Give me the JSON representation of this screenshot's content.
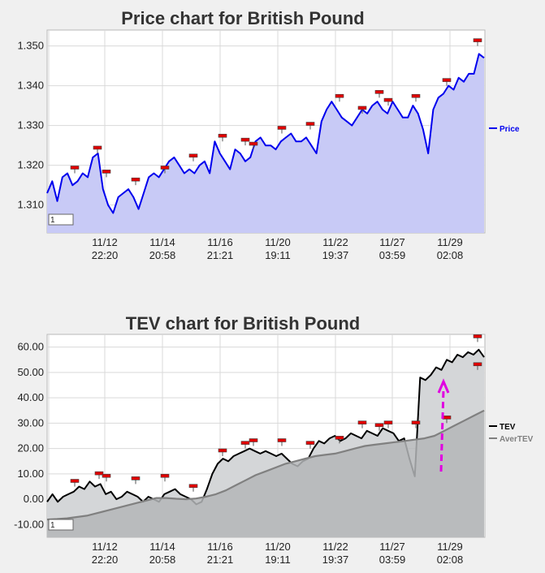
{
  "chart_data": [
    {
      "type": "area",
      "title": "Price chart for British Pound",
      "xlabel": "",
      "ylabel": "",
      "ylim": [
        1.303,
        1.354
      ],
      "yticks": [
        "1.310",
        "1.320",
        "1.330",
        "1.340",
        "1.350"
      ],
      "ytick_values": [
        1.31,
        1.32,
        1.33,
        1.34,
        1.35
      ],
      "xticks": [
        {
          "date": "11/12",
          "time": "22:20"
        },
        {
          "date": "11/14",
          "time": "20:58"
        },
        {
          "date": "11/16",
          "time": "21:21"
        },
        {
          "date": "11/20",
          "time": "19:11"
        },
        {
          "date": "11/22",
          "time": "19:37"
        },
        {
          "date": "11/27",
          "time": "03:59"
        },
        {
          "date": "11/29",
          "time": "02:08"
        }
      ],
      "grid": true,
      "legend": "right",
      "zoom_value": "1",
      "series": [
        {
          "name": "Price",
          "color": "#0000ee",
          "fill": "#c8caf6",
          "values": [
            1.313,
            1.316,
            1.311,
            1.317,
            1.318,
            1.315,
            1.316,
            1.318,
            1.317,
            1.322,
            1.323,
            1.314,
            1.31,
            1.308,
            1.312,
            1.313,
            1.314,
            1.312,
            1.309,
            1.313,
            1.317,
            1.318,
            1.317,
            1.319,
            1.321,
            1.322,
            1.32,
            1.318,
            1.319,
            1.318,
            1.32,
            1.321,
            1.318,
            1.326,
            1.323,
            1.321,
            1.319,
            1.324,
            1.323,
            1.321,
            1.322,
            1.326,
            1.327,
            1.325,
            1.325,
            1.324,
            1.326,
            1.327,
            1.328,
            1.326,
            1.326,
            1.327,
            1.325,
            1.323,
            1.331,
            1.334,
            1.336,
            1.334,
            1.332,
            1.331,
            1.33,
            1.332,
            1.334,
            1.333,
            1.335,
            1.336,
            1.334,
            1.333,
            1.336,
            1.334,
            1.332,
            1.332,
            1.335,
            1.333,
            1.329,
            1.323,
            1.334,
            1.337,
            1.338,
            1.34,
            1.339,
            1.342,
            1.341,
            1.343,
            1.343,
            1.348,
            1.347
          ]
        }
      ],
      "markers": [
        1.318,
        1.323,
        1.317,
        1.315,
        1.318,
        1.321,
        1.326,
        1.325,
        1.324,
        1.328,
        1.329,
        1.336,
        1.333,
        1.337,
        1.335,
        1.336,
        1.34,
        1.35
      ]
    },
    {
      "type": "area",
      "title": "TEV chart for British Pound",
      "xlabel": "",
      "ylabel": "",
      "ylim": [
        -15,
        65
      ],
      "yticks": [
        "-10.00",
        "0.00",
        "10.00",
        "20.00",
        "30.00",
        "40.00",
        "50.00",
        "60.00"
      ],
      "ytick_values": [
        -10,
        0,
        10,
        20,
        30,
        40,
        50,
        60
      ],
      "xticks": [
        {
          "date": "11/12",
          "time": "22:20"
        },
        {
          "date": "11/14",
          "time": "20:58"
        },
        {
          "date": "11/16",
          "time": "21:21"
        },
        {
          "date": "11/20",
          "time": "19:11"
        },
        {
          "date": "11/22",
          "time": "19:37"
        },
        {
          "date": "11/27",
          "time": "03:59"
        },
        {
          "date": "11/29",
          "time": "02:08"
        }
      ],
      "grid": true,
      "legend": "right",
      "zoom_value": "1",
      "series": [
        {
          "name": "TEV",
          "color": "#000000",
          "fill": "#d4d6d8",
          "values": [
            -1,
            2,
            -1,
            1,
            2,
            3,
            5,
            4,
            7,
            5,
            6,
            2,
            3,
            0,
            1,
            3,
            2,
            1,
            -1,
            1,
            0,
            -1,
            2,
            3,
            4,
            2,
            1,
            0,
            -2,
            -1,
            4,
            10,
            14,
            16,
            15,
            17,
            18,
            19,
            20,
            19,
            18,
            19,
            18,
            17,
            18,
            16,
            14,
            13,
            15,
            16,
            20,
            23,
            22,
            24,
            25,
            23,
            24,
            26,
            25,
            24,
            27,
            26,
            25,
            28,
            27,
            26,
            23,
            24,
            16,
            9,
            48,
            47,
            49,
            52,
            51,
            55,
            54,
            57,
            56,
            58,
            57,
            59,
            56
          ]
        },
        {
          "name": "AverTEV",
          "color": "#808080",
          "fill": "#b4b6b8",
          "values": [
            -8,
            -7.8,
            -7.5,
            -7,
            -6.5,
            -5.5,
            -4.5,
            -3.5,
            -2.5,
            -1.5,
            -0.5,
            0.5,
            0.5,
            0.2,
            0,
            0.3,
            1,
            2,
            3.5,
            5.5,
            7.5,
            9.5,
            11,
            12.5,
            14,
            15,
            16,
            17,
            17.5,
            18,
            19,
            20,
            21,
            21.5,
            22,
            22.5,
            23,
            23.5,
            24,
            25,
            27,
            29,
            31,
            33,
            35
          ]
        }
      ],
      "markers": [
        5,
        8,
        7,
        6,
        7,
        3,
        17,
        20,
        21,
        21,
        20,
        22,
        28,
        27,
        28,
        28,
        30,
        51,
        62
      ]
    }
  ]
}
